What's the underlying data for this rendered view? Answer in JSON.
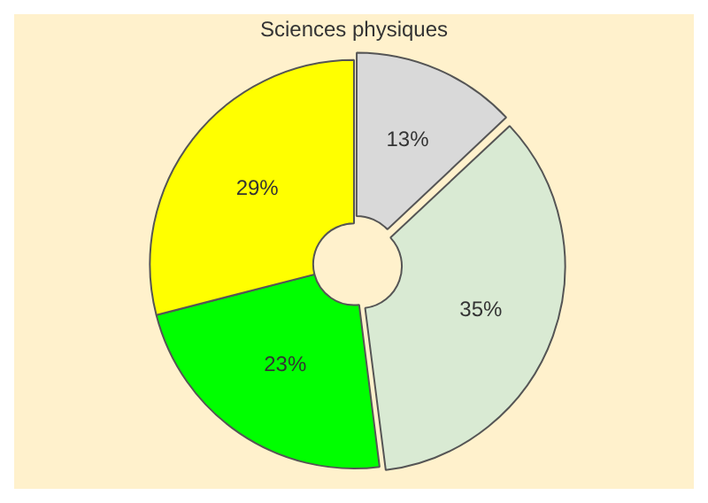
{
  "chart_data": {
    "type": "donut",
    "title": "Sciences physiques",
    "categories": [
      null,
      null,
      null,
      null
    ],
    "values": [
      13,
      35,
      23,
      29
    ],
    "colors": [
      "#d9d9d9",
      "#d9ead3",
      "#00ff00",
      "#ffff00"
    ],
    "value_labels": [
      "13%",
      "35%",
      "23%",
      "29%"
    ],
    "legend": false
  }
}
